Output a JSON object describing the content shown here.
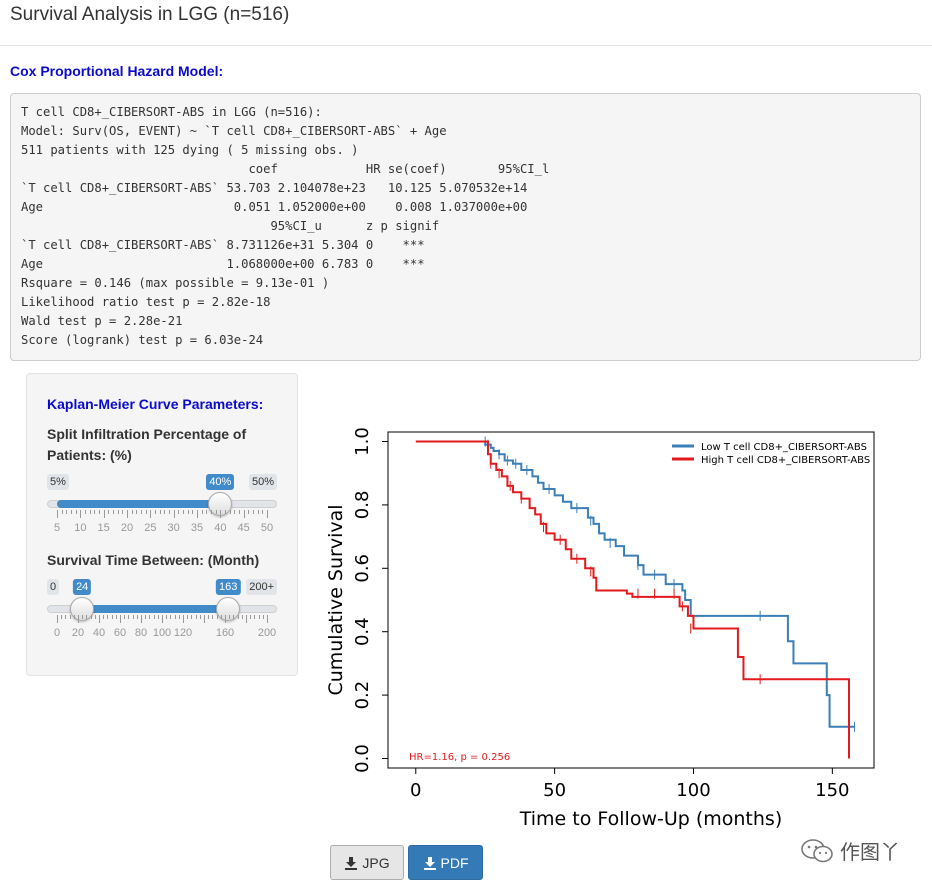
{
  "page": {
    "title": "Survival Analysis in LGG (n=516)"
  },
  "cox": {
    "heading": "Cox Proportional Hazard Model:",
    "lines": [
      "T cell CD8+_CIBERSORT-ABS in LGG (n=516):",
      "Model: Surv(OS, EVENT) ~ `T cell CD8+_CIBERSORT-ABS` + Age",
      "511 patients with 125 dying ( 5 missing obs. )",
      "                               coef            HR se(coef)       95%CI_l",
      "`T cell CD8+_CIBERSORT-ABS` 53.703 2.104078e+23   10.125 5.070532e+14",
      "Age                          0.051 1.052000e+00    0.008 1.037000e+00",
      "                                  95%CI_u      z p signif",
      "`T cell CD8+_CIBERSORT-ABS` 8.731126e+31 5.304 0    ***",
      "Age                         1.068000e+00 6.783 0    ***",
      "Rsquare = 0.146 (max possible = 9.13e-01 )",
      "Likelihood ratio test p = 2.82e-18",
      "Wald test p = 2.28e-21",
      "Score (logrank) test p = 6.03e-24"
    ]
  },
  "km_params": {
    "heading": "Kaplan-Meier Curve Parameters:",
    "split": {
      "label": "Split Infiltration Percentage of Patients: (%)",
      "min": 5,
      "max": 50,
      "value": 40,
      "min_label": "5%",
      "max_label": "50%",
      "value_label": "40%",
      "ticks": [
        "5",
        "10",
        "15",
        "20",
        "25",
        "30",
        "35",
        "40",
        "45",
        "50"
      ]
    },
    "time": {
      "label": "Survival Time Between: (Month)",
      "min": 0,
      "max": 200,
      "from": 24,
      "to": 163,
      "min_label": "0",
      "max_label": "200+",
      "from_label": "24",
      "to_label": "163",
      "ticks": [
        "0",
        "20",
        "40",
        "60",
        "80",
        "100",
        "120",
        "",
        "160",
        "",
        "200"
      ]
    }
  },
  "chart_data": {
    "type": "line",
    "xlabel": "Time to Follow-Up (months)",
    "ylabel": "Cumulative Survival",
    "xlim": [
      -10,
      165
    ],
    "ylim": [
      -0.03,
      1.03
    ],
    "xticks": [
      "0",
      "50",
      "100",
      "150"
    ],
    "yticks": [
      "0.0",
      "0.2",
      "0.4",
      "0.6",
      "0.8",
      "1.0"
    ],
    "legend_position": "top-right",
    "annotation": "HR=1.16, p = 0.256",
    "series": [
      {
        "name": "Low T cell CD8+_CIBERSORT-ABS",
        "color": "#3b7fb8",
        "steps": [
          [
            24,
            1.0
          ],
          [
            25,
            0.99
          ],
          [
            27,
            0.98
          ],
          [
            28,
            0.97
          ],
          [
            30,
            0.96
          ],
          [
            32,
            0.94
          ],
          [
            35,
            0.93
          ],
          [
            38,
            0.91
          ],
          [
            42,
            0.89
          ],
          [
            44,
            0.87
          ],
          [
            46,
            0.85
          ],
          [
            50,
            0.83
          ],
          [
            53,
            0.81
          ],
          [
            56,
            0.79
          ],
          [
            60,
            0.79
          ],
          [
            62,
            0.76
          ],
          [
            64,
            0.74
          ],
          [
            66,
            0.71
          ],
          [
            68,
            0.69
          ],
          [
            72,
            0.67
          ],
          [
            75,
            0.64
          ],
          [
            80,
            0.61
          ],
          [
            82,
            0.58
          ],
          [
            90,
            0.55
          ],
          [
            96,
            0.53
          ],
          [
            97,
            0.5
          ],
          [
            99,
            0.45
          ],
          [
            133,
            0.45
          ],
          [
            134,
            0.37
          ],
          [
            136,
            0.3
          ],
          [
            147,
            0.3
          ],
          [
            148,
            0.2
          ],
          [
            149,
            0.1
          ],
          [
            158,
            0.1
          ]
        ],
        "censors": [
          [
            25,
            1.0
          ],
          [
            26,
            0.99
          ],
          [
            30,
            0.96
          ],
          [
            33,
            0.94
          ],
          [
            36,
            0.93
          ],
          [
            40,
            0.91
          ],
          [
            48,
            0.85
          ],
          [
            58,
            0.79
          ],
          [
            63,
            0.75
          ],
          [
            70,
            0.68
          ],
          [
            80,
            0.61
          ],
          [
            86,
            0.58
          ],
          [
            93,
            0.55
          ],
          [
            124,
            0.45
          ],
          [
            158,
            0.1
          ]
        ]
      },
      {
        "name": "High T cell CD8+_CIBERSORT-ABS",
        "color": "#e31a1c",
        "steps": [
          [
            0,
            1.0
          ],
          [
            25,
            1.0
          ],
          [
            26,
            0.96
          ],
          [
            27,
            0.93
          ],
          [
            29,
            0.91
          ],
          [
            31,
            0.89
          ],
          [
            33,
            0.86
          ],
          [
            35,
            0.84
          ],
          [
            38,
            0.82
          ],
          [
            41,
            0.79
          ],
          [
            43,
            0.77
          ],
          [
            45,
            0.74
          ],
          [
            47,
            0.71
          ],
          [
            50,
            0.69
          ],
          [
            54,
            0.66
          ],
          [
            56,
            0.63
          ],
          [
            61,
            0.6
          ],
          [
            64,
            0.57
          ],
          [
            65,
            0.53
          ],
          [
            76,
            0.52
          ],
          [
            78,
            0.51
          ],
          [
            95,
            0.48
          ],
          [
            98,
            0.45
          ],
          [
            100,
            0.41
          ],
          [
            115,
            0.41
          ],
          [
            116,
            0.32
          ],
          [
            118,
            0.25
          ],
          [
            156,
            0.25
          ],
          [
            156,
            0.0
          ]
        ],
        "censors": [
          [
            27,
            0.93
          ],
          [
            30,
            0.9
          ],
          [
            34,
            0.86
          ],
          [
            38,
            0.82
          ],
          [
            46,
            0.73
          ],
          [
            52,
            0.69
          ],
          [
            58,
            0.63
          ],
          [
            63,
            0.59
          ],
          [
            80,
            0.52
          ],
          [
            86,
            0.52
          ],
          [
            93,
            0.52
          ],
          [
            96,
            0.48
          ],
          [
            99,
            0.41
          ],
          [
            124,
            0.25
          ]
        ]
      }
    ]
  },
  "buttons": {
    "jpg": "JPG",
    "pdf": "PDF"
  },
  "watermark": {
    "text": "作图丫"
  }
}
